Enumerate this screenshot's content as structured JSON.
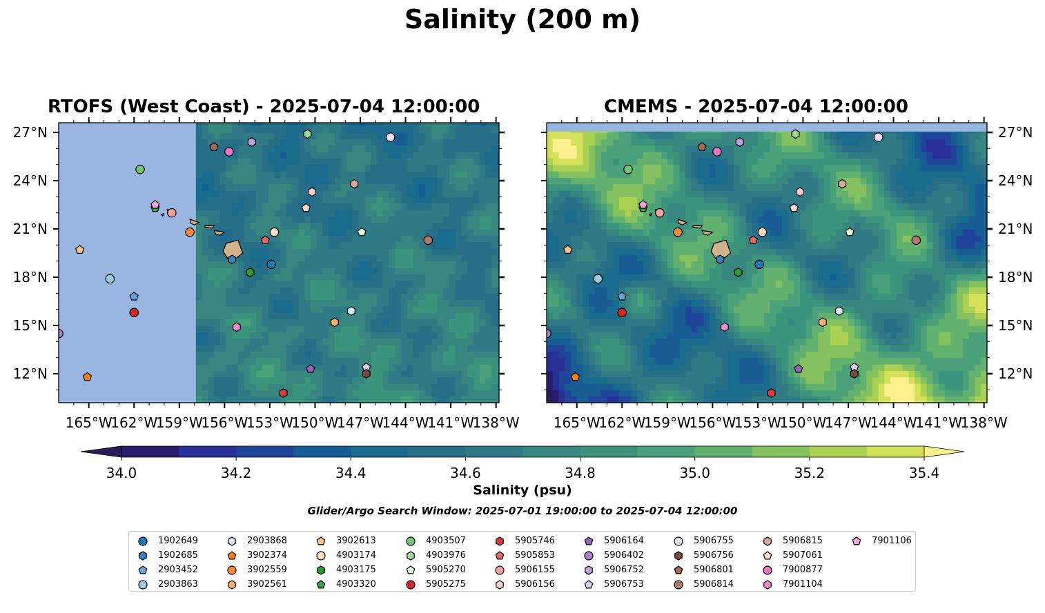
{
  "suptitle": "Salinity (200 m)",
  "search_window": "Glider/Argo Search Window: 2025-07-01 19:00:00 to 2025-07-04 12:00:00",
  "colorbar": {
    "label": "Salinity (psu)",
    "ticks": [
      "34.0",
      "34.2",
      "34.4",
      "34.6",
      "34.8",
      "35.0",
      "35.2",
      "35.4"
    ],
    "range": [
      34.0,
      35.4
    ],
    "extend": "both",
    "colormap": [
      "#281c6c",
      "#2a2e97",
      "#1f449a",
      "#175c93",
      "#1a6b8d",
      "#266f86",
      "#2f7a84",
      "#37867f",
      "#3d947c",
      "#4ba179",
      "#63b16e",
      "#85c15f",
      "#abd253",
      "#d5e05b",
      "#fceb89"
    ],
    "under_color": "#291c58",
    "over_color": "#fdf08e"
  },
  "land_color": "#d2b48c",
  "ocean_mask_color": "#98b6e0",
  "chart_data": [
    {
      "type": "heatmap",
      "title": "RTOFS (West Coast) - 2025-07-04 12:00:00",
      "variable": "Salinity at 200 m (psu)",
      "xlim": [
        -167,
        -137.8
      ],
      "ylim": [
        10.2,
        27.6
      ],
      "xticks": [
        "165°W",
        "162°W",
        "159°W",
        "156°W",
        "153°W",
        "150°W",
        "147°W",
        "144°W",
        "141°W",
        "138°W"
      ],
      "yticks": [
        "12°N",
        "15°N",
        "18°N",
        "21°N",
        "24°N",
        "27°N"
      ],
      "data_west_bound": -157.9,
      "data_north_bound": 27.6,
      "typical_range": [
        34.5,
        34.9
      ]
    },
    {
      "type": "heatmap",
      "title": "CMEMS - 2025-07-04 12:00:00",
      "variable": "Salinity at 200 m (psu)",
      "xlim": [
        -167,
        -137.8
      ],
      "ylim": [
        10.2,
        27.6
      ],
      "xticks": [
        "165°W",
        "162°W",
        "159°W",
        "156°W",
        "153°W",
        "150°W",
        "147°W",
        "144°W",
        "141°W",
        "138°W"
      ],
      "yticks": [
        "12°N",
        "15°N",
        "18°N",
        "21°N",
        "24°N",
        "27°N"
      ],
      "data_west_bound": -167,
      "data_north_bound": 27.05,
      "typical_range": [
        34.2,
        35.3
      ]
    }
  ],
  "floats": [
    {
      "id": "1902649",
      "marker": "circle",
      "color": "#1f77b4",
      "lon": -152.9,
      "lat": 18.8
    },
    {
      "id": "1902685",
      "marker": "hexagon",
      "color": "#3b83bf",
      "lon": -155.5,
      "lat": 19.1
    },
    {
      "id": "2903452",
      "marker": "pentagon",
      "color": "#6aa4d6",
      "lon": -162.0,
      "lat": 16.8
    },
    {
      "id": "2903863",
      "marker": "circle",
      "color": "#9ecae1",
      "lon": -163.6,
      "lat": 17.9
    },
    {
      "id": "2903868",
      "marker": "hexagon",
      "color": "#d6ecfb",
      "lon": -147.6,
      "lat": 15.9
    },
    {
      "id": "3902374",
      "marker": "pentagon",
      "color": "#ff7f0e",
      "lon": -165.1,
      "lat": 11.8
    },
    {
      "id": "3902559",
      "marker": "circle",
      "color": "#fd8d3c",
      "lon": -158.3,
      "lat": 20.8
    },
    {
      "id": "3902561",
      "marker": "hexagon",
      "color": "#fdae6b",
      "lon": -148.7,
      "lat": 15.2
    },
    {
      "id": "3902613",
      "marker": "pentagon",
      "color": "#fdc28c",
      "lon": -165.6,
      "lat": 19.7
    },
    {
      "id": "4903174",
      "marker": "circle",
      "color": "#fde0c5",
      "lon": -152.7,
      "lat": 20.8
    },
    {
      "id": "4903175",
      "marker": "hexagon",
      "color": "#2ca02c",
      "lon": -154.3,
      "lat": 18.3
    },
    {
      "id": "4903320",
      "marker": "pentagon",
      "color": "#31a354",
      "lon": -160.6,
      "lat": 22.3
    },
    {
      "id": "4903507",
      "marker": "circle",
      "color": "#74c476",
      "lon": -161.6,
      "lat": 24.7
    },
    {
      "id": "4903976",
      "marker": "hexagon",
      "color": "#a1d99b",
      "lon": -150.5,
      "lat": 26.9
    },
    {
      "id": "5905270",
      "marker": "pentagon",
      "color": "#d9f5d3",
      "lon": -146.9,
      "lat": 20.8
    },
    {
      "id": "5905275",
      "marker": "circle",
      "color": "#d62728",
      "lon": -162.0,
      "lat": 15.8
    },
    {
      "id": "5905746",
      "marker": "hexagon",
      "color": "#e03a3a",
      "lon": -152.1,
      "lat": 10.8
    },
    {
      "id": "5905853",
      "marker": "pentagon",
      "color": "#e8676a",
      "lon": -153.3,
      "lat": 20.3
    },
    {
      "id": "5906155",
      "marker": "circle",
      "color": "#f2a0a0",
      "lon": -159.5,
      "lat": 22.0
    },
    {
      "id": "5906156",
      "marker": "hexagon",
      "color": "#fbcfcf",
      "lon": -150.2,
      "lat": 23.3
    },
    {
      "id": "5906164",
      "marker": "pentagon",
      "color": "#9467bd",
      "lon": -150.3,
      "lat": 12.3
    },
    {
      "id": "5906402",
      "marker": "circle",
      "color": "#a680cc",
      "lon": -167.0,
      "lat": 14.5
    },
    {
      "id": "5906752",
      "marker": "hexagon",
      "color": "#bfa3dc",
      "lon": -154.2,
      "lat": 26.4
    },
    {
      "id": "5906753",
      "marker": "pentagon",
      "color": "#dccbef",
      "lon": -146.6,
      "lat": 12.4
    },
    {
      "id": "5906755",
      "marker": "circle",
      "color": "#efe3f7",
      "lon": -145.0,
      "lat": 26.7
    },
    {
      "id": "5906756",
      "marker": "hexagon",
      "color": "#7b4a3a",
      "lon": -146.6,
      "lat": 12.0
    },
    {
      "id": "5906801",
      "marker": "pentagon",
      "color": "#a56a58",
      "lon": -156.7,
      "lat": 26.1
    },
    {
      "id": "5906814",
      "marker": "circle",
      "color": "#b07a6a",
      "lon": -142.5,
      "lat": 20.3
    },
    {
      "id": "5906815",
      "marker": "hexagon",
      "color": "#dcaca0",
      "lon": -147.4,
      "lat": 23.8
    },
    {
      "id": "5907061",
      "marker": "pentagon",
      "color": "#fbdcd1",
      "lon": -150.6,
      "lat": 22.3
    },
    {
      "id": "7900877",
      "marker": "circle",
      "color": "#e377c2",
      "lon": -155.7,
      "lat": 25.8
    },
    {
      "id": "7901104",
      "marker": "hexagon",
      "color": "#f08bd0",
      "lon": -155.2,
      "lat": 14.9
    },
    {
      "id": "7901106",
      "marker": "pentagon",
      "color": "#f4a3dc",
      "lon": -160.6,
      "lat": 22.5
    }
  ]
}
